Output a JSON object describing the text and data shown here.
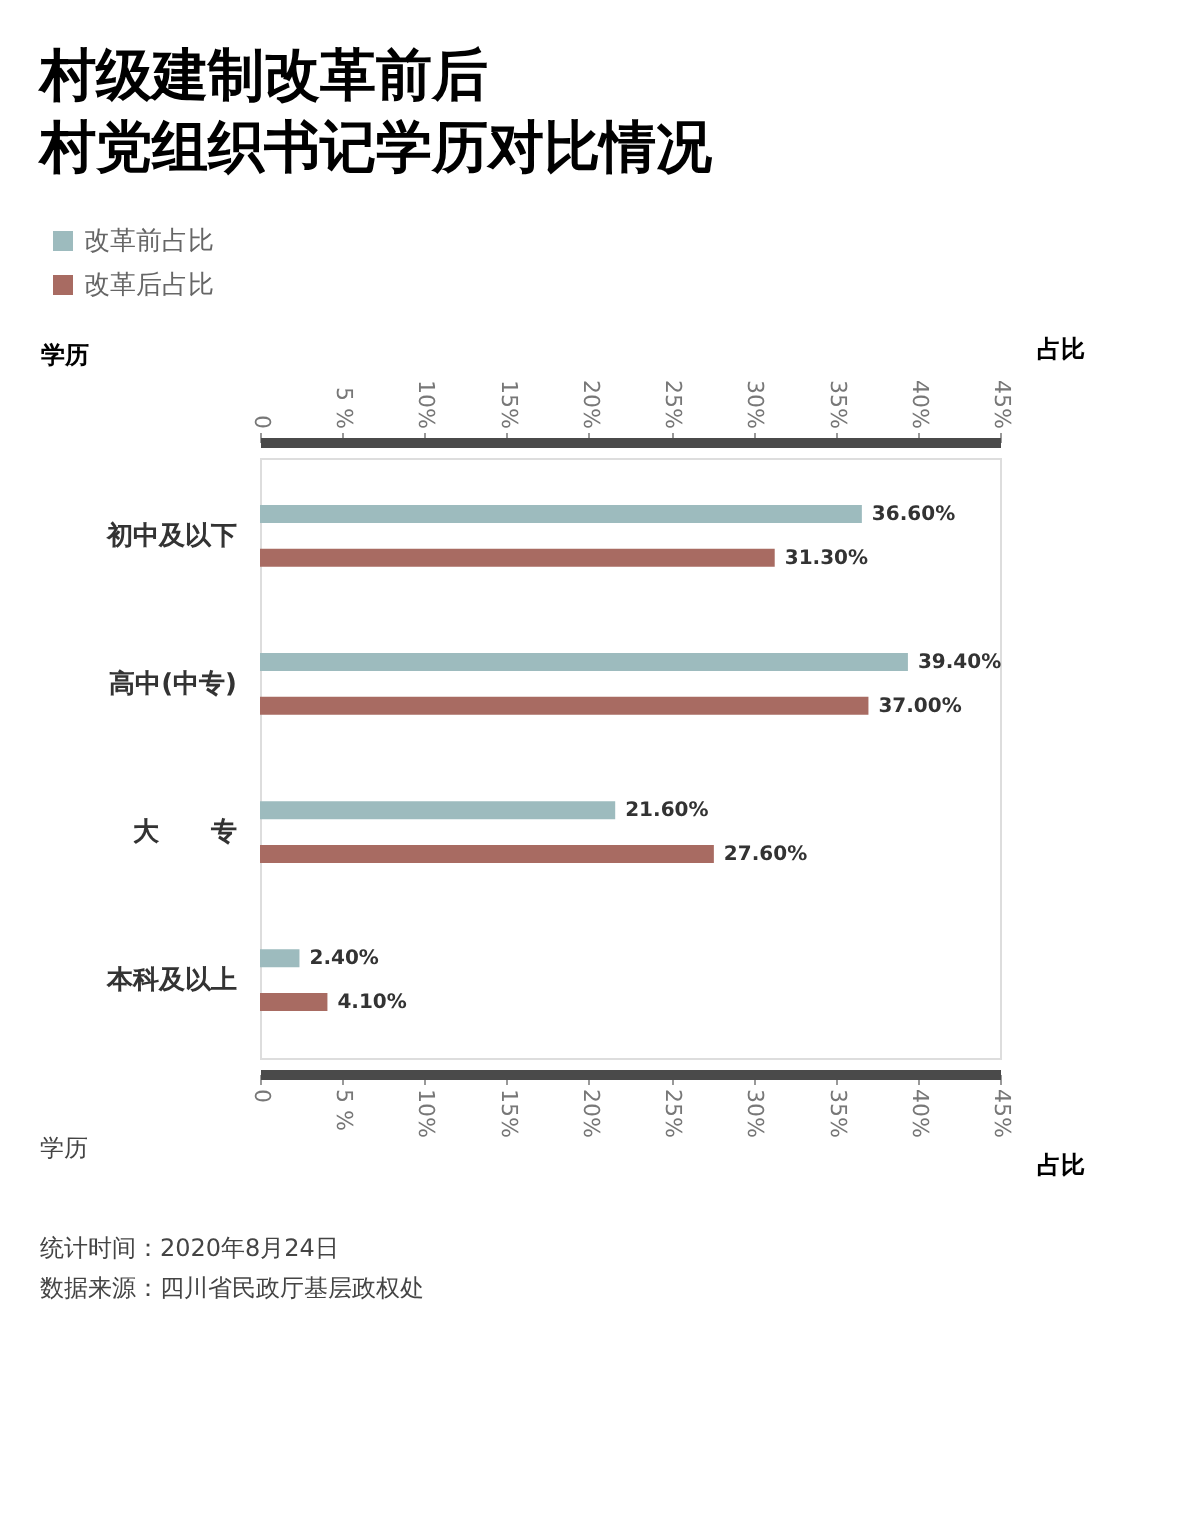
{
  "chart_data": {
    "type": "bar",
    "orientation": "horizontal",
    "title": "村级建制改革前后",
    "subtitle": "村党组织书记学历对比情况",
    "xlabel": "占比",
    "x2label": "占比",
    "ylabel": "学历",
    "categories": [
      "初中及以下",
      "高中(中专)",
      "大　　专",
      "本科及以上"
    ],
    "series": [
      {
        "name": "改革前占比",
        "color": "#9dbbbe",
        "values": [
          36.6,
          39.4,
          21.6,
          2.4
        ],
        "value_labels": [
          "36.60%",
          "39.40%",
          "21.60%",
          "2.40%"
        ]
      },
      {
        "name": "改革后占比",
        "color": "#a86b62",
        "values": [
          31.3,
          37.0,
          27.6,
          4.1
        ],
        "value_labels": [
          "31.30%",
          "37.00%",
          "27.60%",
          "4.10%"
        ]
      }
    ],
    "xlim": [
      0,
      45
    ],
    "xticks": [
      0,
      {
        "value": 5,
        "label": "5 %"
      },
      {
        "value": 10,
        "label": "10%"
      },
      {
        "value": 15,
        "label": "15%"
      },
      {
        "value": 20,
        "label": "20%"
      },
      {
        "value": 25,
        "label": "25%"
      },
      {
        "value": 30,
        "label": "30%"
      },
      {
        "value": 35,
        "label": "35%"
      },
      {
        "value": 40,
        "label": "40%"
      },
      {
        "value": 45,
        "label": "45%"
      }
    ],
    "x2lim": [
      0,
      45
    ],
    "x2ticks": [
      0,
      {
        "value": 5,
        "label": "5 %"
      },
      {
        "value": 10,
        "label": "10%"
      },
      {
        "value": 15,
        "label": "15%"
      },
      {
        "value": 20,
        "label": "20%"
      },
      {
        "value": 25,
        "label": "25%"
      },
      {
        "value": 30,
        "label": "30%"
      },
      {
        "value": 35,
        "label": "35%"
      },
      {
        "value": 40,
        "label": "40%"
      },
      {
        "value": 45,
        "label": "45%"
      }
    ],
    "legend": "top left",
    "grid": false,
    "annotations": [
      "学历",
      "统计时间：2020年8月24日",
      "数据来源：四川省民政厅基层政权处"
    ]
  }
}
